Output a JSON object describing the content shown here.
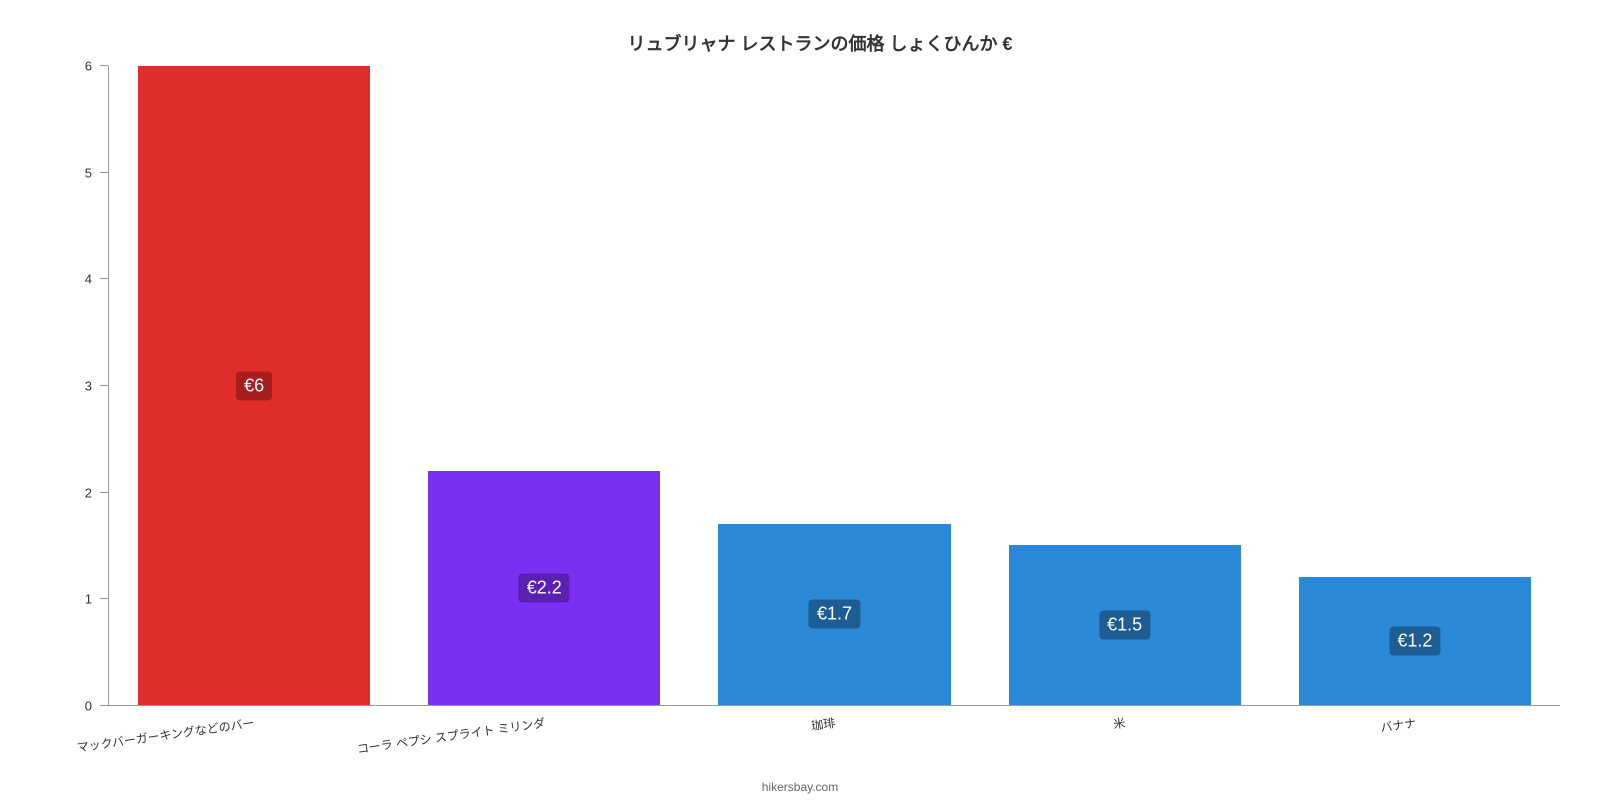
{
  "chart": {
    "type": "bar",
    "title": "リュブリャナ レストランの価格 しょくひんか €",
    "title_fontsize": 18,
    "title_color": "#333333",
    "background_color": "#ffffff",
    "ylim": [
      0,
      6
    ],
    "y_ticks": [
      0,
      1,
      2,
      3,
      4,
      5,
      6
    ],
    "y_tick_fontsize": 13,
    "y_tick_color": "#333333",
    "axis_line_color": "#999999",
    "bar_width_pct": 16,
    "bar_gap_pct": 4,
    "categories": [
      "マックバーガーキングなどのバー",
      "コーラ ペプシ スプライト ミリンダ",
      "珈琲",
      "米",
      "バナナ"
    ],
    "values": [
      6,
      2.2,
      1.7,
      1.5,
      1.2
    ],
    "value_labels": [
      "€6",
      "€2.2",
      "€1.7",
      "€1.5",
      "€1.2"
    ],
    "bar_colors": [
      "#e12c2c",
      "#7b2ff2",
      "#2a8ad8",
      "#2a8ad8",
      "#2a8ad8"
    ],
    "label_bg_colors": [
      "#a61e1e",
      "#5a1fb3",
      "#1d5d94",
      "#1d5d94",
      "#1d5d94"
    ],
    "label_text_color": "#ffffff",
    "label_fontsize": 18,
    "x_label_fontsize": 12,
    "x_label_color": "#333333",
    "x_label_rotation_deg": -8,
    "credit": "hikersbay.com",
    "credit_fontsize": 12,
    "credit_color": "#666666"
  }
}
